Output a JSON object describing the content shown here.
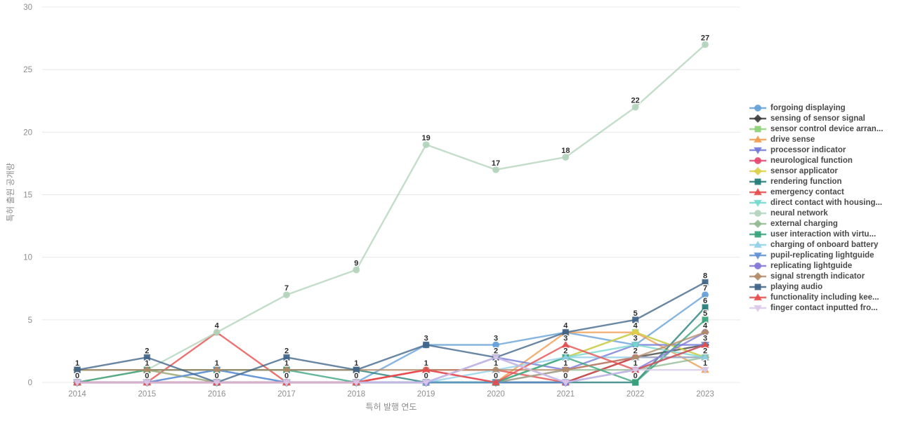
{
  "chart_data": {
    "type": "line",
    "title": "",
    "xlabel": "특허 발행 연도",
    "ylabel": "특허 출원 공개량",
    "x": [
      2014,
      2015,
      2016,
      2017,
      2018,
      2019,
      2020,
      2021,
      2022,
      2023
    ],
    "ylim": [
      0,
      30
    ],
    "yticks": [
      0,
      5,
      10,
      15,
      20,
      25,
      30
    ],
    "grid": "horizontal",
    "legend_position": "right",
    "colors": {
      "grid": "#e8e8e8",
      "tick_text": "#8e8e8e",
      "axis_title_text": "#8e8e8e",
      "data_label_text": "#2d2d2d",
      "legend_text": "#4a4a4a"
    },
    "series": [
      {
        "name": "forgoing displaying",
        "color": "#64a0d8",
        "marker": "circle",
        "values": [
          0,
          0,
          1,
          0,
          0,
          3,
          3,
          4,
          3,
          7
        ]
      },
      {
        "name": "sensing of sensor signal",
        "color": "#3d3d3d",
        "marker": "diamond",
        "values": [
          0,
          0,
          0,
          0,
          0,
          0,
          0,
          0,
          2,
          3
        ]
      },
      {
        "name": "sensor control device arran...",
        "color": "#8ed077",
        "marker": "square",
        "values": [
          0,
          0,
          0,
          0,
          0,
          0,
          0,
          2,
          4,
          2
        ]
      },
      {
        "name": "drive sense",
        "color": "#f09c4e",
        "marker": "triangle-up",
        "values": [
          0,
          1,
          0,
          0,
          0,
          0,
          0,
          4,
          4,
          1
        ]
      },
      {
        "name": "processor indicator",
        "color": "#7178d8",
        "marker": "triangle-down",
        "values": [
          0,
          0,
          0,
          0,
          0,
          0,
          2,
          1,
          3,
          3
        ]
      },
      {
        "name": "neurological function",
        "color": "#e4486e",
        "marker": "circle",
        "values": [
          0,
          0,
          0,
          0,
          0,
          1,
          0,
          1,
          2,
          2
        ]
      },
      {
        "name": "sensor applicator",
        "color": "#ddcf4a",
        "marker": "diamond",
        "values": [
          0,
          0,
          0,
          0,
          0,
          0,
          0,
          2,
          4,
          2
        ]
      },
      {
        "name": "rendering function",
        "color": "#227c78",
        "marker": "square",
        "values": [
          1,
          1,
          1,
          1,
          1,
          0,
          0,
          0,
          0,
          6
        ]
      },
      {
        "name": "emergency contact",
        "color": "#e64c4c",
        "marker": "triangle-up",
        "values": [
          0,
          0,
          4,
          0,
          0,
          1,
          1,
          0,
          2,
          2
        ]
      },
      {
        "name": "direct contact with housing...",
        "color": "#74d8cd",
        "marker": "triangle-down",
        "values": [
          0,
          0,
          0,
          0,
          0,
          0,
          0,
          2,
          3,
          2
        ]
      },
      {
        "name": "neural network",
        "color": "#b2d3bb",
        "marker": "circle",
        "values": [
          0,
          1,
          4,
          7,
          9,
          19,
          17,
          18,
          22,
          27
        ]
      },
      {
        "name": "external charging",
        "color": "#92b992",
        "marker": "diamond",
        "values": [
          1,
          1,
          0,
          0,
          0,
          0,
          0,
          1,
          1,
          2
        ]
      },
      {
        "name": "user interaction with virtu...",
        "color": "#37a37b",
        "marker": "square",
        "values": [
          0,
          1,
          1,
          1,
          0,
          0,
          0,
          2,
          0,
          5
        ]
      },
      {
        "name": "charging of onboard battery",
        "color": "#90d0e8",
        "marker": "triangle-up",
        "values": [
          0,
          0,
          0,
          0,
          0,
          0,
          1,
          2,
          2,
          2
        ]
      },
      {
        "name": "pupil-replicating lightguide",
        "color": "#6090d2",
        "marker": "triangle-down",
        "values": [
          0,
          0,
          1,
          0,
          0,
          0,
          0,
          0,
          1,
          3
        ]
      },
      {
        "name": "replicating lightguide",
        "color": "#8075d6",
        "marker": "circle",
        "values": [
          0,
          0,
          0,
          0,
          0,
          0,
          2,
          0,
          1,
          4
        ]
      },
      {
        "name": "signal strength indicator",
        "color": "#b28a68",
        "marker": "diamond",
        "values": [
          1,
          1,
          1,
          1,
          1,
          1,
          1,
          1,
          2,
          4
        ]
      },
      {
        "name": "playing audio",
        "color": "#3f6488",
        "marker": "square",
        "values": [
          1,
          2,
          0,
          2,
          1,
          3,
          2,
          4,
          5,
          8
        ]
      },
      {
        "name": "functionality including kee...",
        "color": "#e64c4c",
        "marker": "triangle-up",
        "values": [
          0,
          0,
          0,
          0,
          0,
          1,
          0,
          3,
          1,
          3
        ]
      },
      {
        "name": "finger contact inputted fro...",
        "color": "#d9c8e8",
        "marker": "triangle-down",
        "values": [
          0,
          0,
          0,
          0,
          0,
          0,
          2,
          0,
          1,
          1
        ]
      }
    ]
  }
}
